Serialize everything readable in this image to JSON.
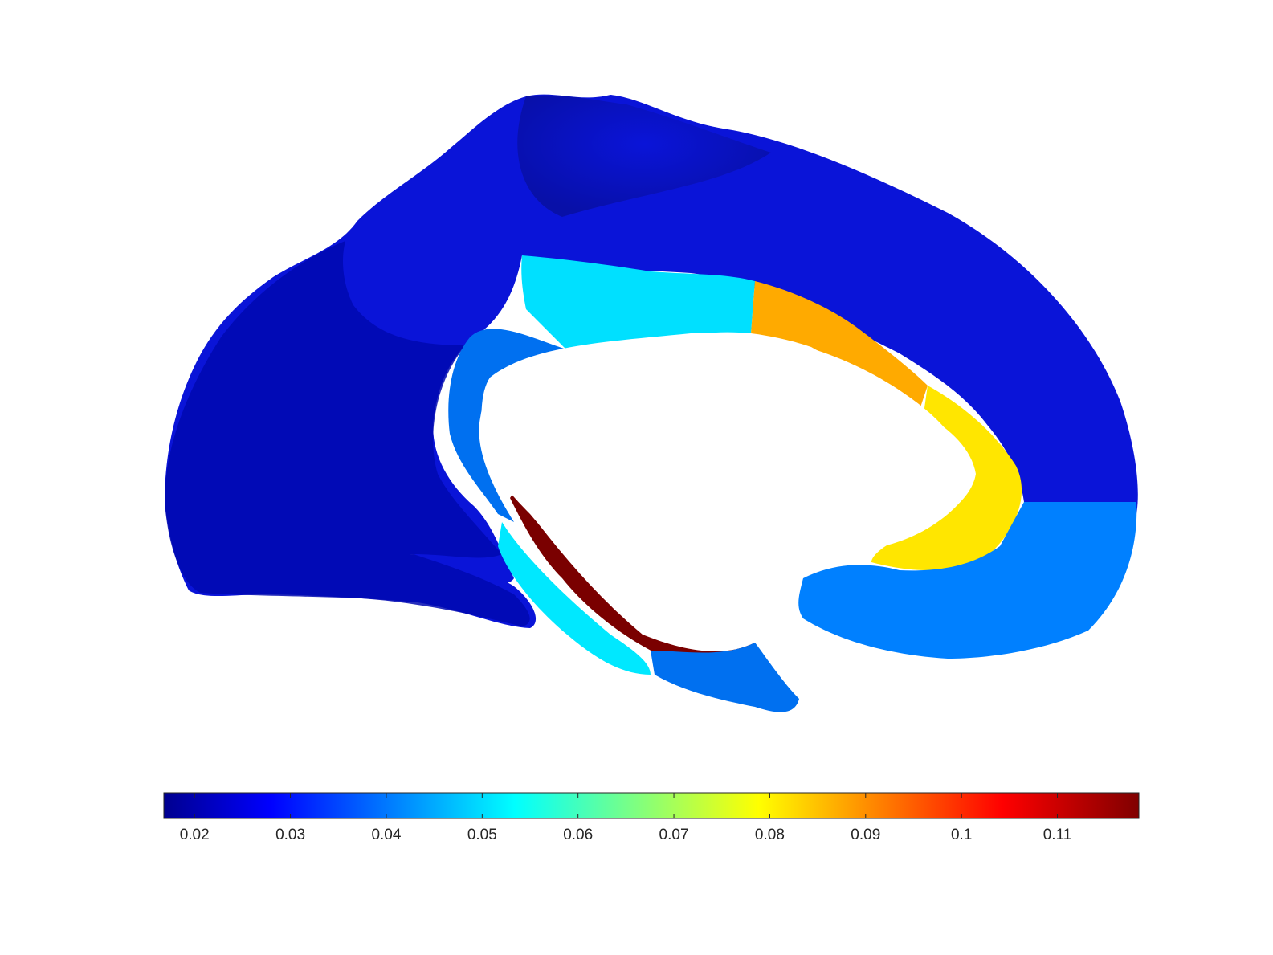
{
  "figure": {
    "type": "brain-surface-render",
    "view": "medial",
    "region_colors": {
      "cortex": "#0a14d8",
      "cortex_dark": "#0008b0",
      "cingulate_anterior": "#00e0ff",
      "cingulate_mid": "#ffaa00",
      "cingulate_posterior": "#ffe600",
      "isthmus": "#0080ff",
      "parahippocampal": "#00e8ff",
      "entorhinal": "#0070f0",
      "temporal_edge": "#7a0000",
      "background": "#ffffff"
    }
  },
  "colorbar": {
    "colormap": "jet",
    "range": [
      0.0168,
      0.1185
    ],
    "ticks": [
      0.02,
      0.03,
      0.04,
      0.05,
      0.06,
      0.07,
      0.08,
      0.09,
      0.1,
      0.11
    ],
    "tick_labels": [
      "0.02",
      "0.03",
      "0.04",
      "0.05",
      "0.06",
      "0.07",
      "0.08",
      "0.09",
      "0.1",
      "0.11"
    ],
    "stops": [
      "#00008f",
      "#0000ff",
      "#00ffff",
      "#ffff00",
      "#ff0000",
      "#800000"
    ]
  }
}
